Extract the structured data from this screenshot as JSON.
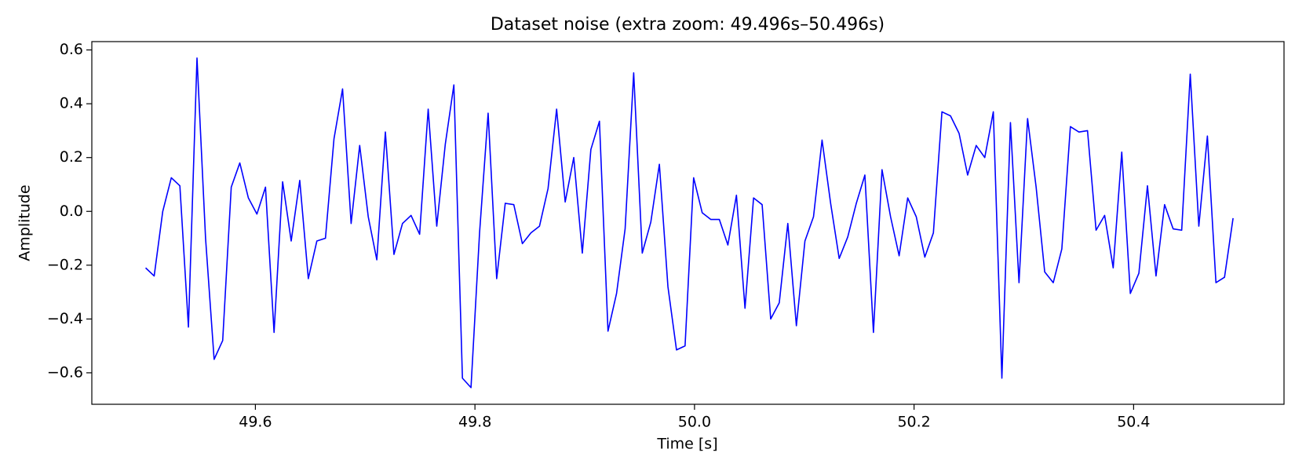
{
  "chart_data": {
    "type": "line",
    "title": "Dataset noise (extra zoom: 49.496s–50.496s)",
    "xlabel": "Time [s]",
    "ylabel": "Amplitude",
    "x": [
      49.5,
      49.5078,
      49.5156,
      49.5234,
      49.5312,
      49.539,
      49.5468,
      49.5546,
      49.5624,
      49.5702,
      49.578,
      49.5858,
      49.5936,
      49.6014,
      49.6092,
      49.617,
      49.6248,
      49.6326,
      49.6404,
      49.6482,
      49.656,
      49.6638,
      49.6716,
      49.6794,
      49.6872,
      49.695,
      49.7028,
      49.7106,
      49.7184,
      49.7262,
      49.734,
      49.7418,
      49.7496,
      49.7574,
      49.7652,
      49.773,
      49.7808,
      49.7886,
      49.7964,
      49.8042,
      49.812,
      49.8198,
      49.8276,
      49.8354,
      49.8432,
      49.851,
      49.8588,
      49.8666,
      49.8744,
      49.8822,
      49.89,
      49.8978,
      49.9056,
      49.9134,
      49.9212,
      49.929,
      49.9368,
      49.9446,
      49.9524,
      49.9602,
      49.968,
      49.9758,
      49.9836,
      49.9914,
      49.9992,
      50.007,
      50.0148,
      50.0226,
      50.0304,
      50.0382,
      50.046,
      50.0538,
      50.0616,
      50.0694,
      50.0772,
      50.085,
      50.0928,
      50.1006,
      50.1084,
      50.1162,
      50.124,
      50.1318,
      50.1396,
      50.1474,
      50.1552,
      50.163,
      50.1708,
      50.1786,
      50.1864,
      50.1942,
      50.202,
      50.2098,
      50.2176,
      50.2254,
      50.2332,
      50.241,
      50.2488,
      50.2566,
      50.2644,
      50.2722,
      50.28,
      50.2878,
      50.2956,
      50.3034,
      50.3112,
      50.319,
      50.3268,
      50.3346,
      50.3424,
      50.3502,
      50.358,
      50.3658,
      50.3736,
      50.3814,
      50.3892,
      50.397,
      50.4048,
      50.4126,
      50.4204,
      50.4282,
      50.436,
      50.4438,
      50.4516,
      50.4594,
      50.4672,
      50.475,
      50.4828,
      50.4906
    ],
    "values": [
      -0.21,
      -0.24,
      0.0,
      0.125,
      0.095,
      -0.43,
      0.57,
      -0.1,
      -0.55,
      -0.48,
      0.09,
      0.18,
      0.05,
      -0.01,
      0.09,
      -0.45,
      0.11,
      -0.11,
      0.115,
      -0.25,
      -0.11,
      -0.1,
      0.27,
      0.455,
      -0.045,
      0.245,
      -0.02,
      -0.18,
      0.295,
      -0.16,
      -0.045,
      -0.015,
      -0.085,
      0.38,
      -0.055,
      0.25,
      0.47,
      -0.62,
      -0.655,
      -0.08,
      0.365,
      -0.25,
      0.03,
      0.025,
      -0.12,
      -0.08,
      -0.055,
      0.085,
      0.38,
      0.035,
      0.2,
      -0.155,
      0.23,
      0.335,
      -0.445,
      -0.305,
      -0.065,
      0.515,
      -0.155,
      -0.04,
      0.175,
      -0.28,
      -0.515,
      -0.5,
      0.125,
      -0.005,
      -0.03,
      -0.03,
      -0.125,
      0.06,
      -0.36,
      0.05,
      0.025,
      -0.4,
      -0.34,
      -0.045,
      -0.425,
      -0.11,
      -0.02,
      0.265,
      0.03,
      -0.175,
      -0.095,
      0.03,
      0.135,
      -0.45,
      0.155,
      -0.02,
      -0.165,
      0.05,
      -0.02,
      -0.17,
      -0.08,
      0.37,
      0.355,
      0.29,
      0.135,
      0.245,
      0.2,
      0.37,
      -0.62,
      0.33,
      -0.265,
      0.345,
      0.09,
      -0.225,
      -0.265,
      -0.14,
      0.315,
      0.295,
      0.3,
      -0.07,
      -0.015,
      -0.21,
      0.22,
      -0.305,
      -0.23,
      0.095,
      -0.24,
      0.025,
      -0.065,
      -0.07,
      0.51,
      -0.055,
      0.28,
      -0.265,
      -0.245,
      -0.025
    ],
    "color": "#0000ff",
    "xlim": [
      49.451,
      50.537
    ],
    "ylim": [
      -0.717,
      0.631
    ],
    "xticks": [
      49.6,
      49.8,
      {
        "value": 50,
        "label": "50.0"
      },
      50.2,
      50.4
    ],
    "yticks": [
      {
        "value": -0.6,
        "label": "−0.6"
      },
      {
        "value": -0.4,
        "label": "−0.4"
      },
      {
        "value": -0.2,
        "label": "−0.2"
      },
      {
        "value": 0,
        "label": "0.0"
      },
      0.2,
      0.4,
      0.6
    ]
  }
}
